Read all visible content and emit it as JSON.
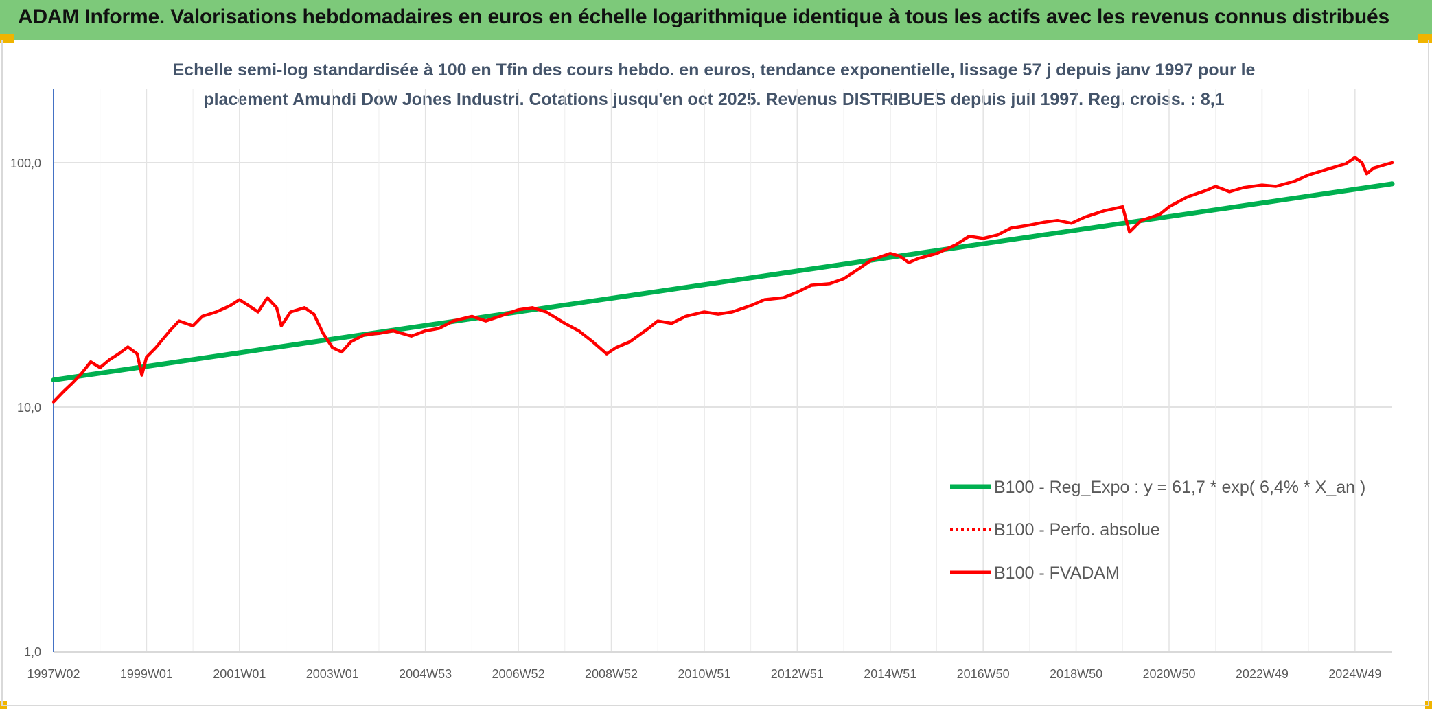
{
  "header": {
    "title": "ADAM Informe. Valorisations hebdomadaires en euros en échelle logarithmique identique à tous les actifs avec les revenus connus distribués"
  },
  "colors": {
    "banner": "#7dc97a",
    "regression": "#00b050",
    "fvadam": "#ff0000",
    "perfo": "#ff0000",
    "corner": "#f0b400"
  },
  "chart_data": {
    "type": "line",
    "title_line1": "Echelle semi-log standardisée à 100 en Tfin des cours hebdo. en euros, tendance exponentielle, lissage 57 j depuis janv 1997 pour le",
    "title_line2": "placement Amundi Dow Jones Industri. Cotations jusqu'en oct 2025. Revenus DISTRIBUES depuis juil 1997. Reg. croiss. : 8,1",
    "y_scale": "log",
    "ylim": [
      1,
      200
    ],
    "xlim": [
      1997.0,
      2025.8
    ],
    "y_ticks": [
      {
        "value": 100,
        "label": "100,0"
      },
      {
        "value": 10,
        "label": "10,0"
      },
      {
        "value": 1,
        "label": "1,0"
      }
    ],
    "x_ticks": [
      {
        "value": 1997.0,
        "label": "1997W02"
      },
      {
        "value": 1999.0,
        "label": "1999W01"
      },
      {
        "value": 2001.0,
        "label": "2001W01"
      },
      {
        "value": 2003.0,
        "label": "2003W01"
      },
      {
        "value": 2005.0,
        "label": "2004W53"
      },
      {
        "value": 2007.0,
        "label": "2006W52"
      },
      {
        "value": 2009.0,
        "label": "2008W52"
      },
      {
        "value": 2011.0,
        "label": "2010W51"
      },
      {
        "value": 2013.0,
        "label": "2012W51"
      },
      {
        "value": 2015.0,
        "label": "2014W51"
      },
      {
        "value": 2017.0,
        "label": "2016W50"
      },
      {
        "value": 2019.0,
        "label": "2018W50"
      },
      {
        "value": 2021.0,
        "label": "2020W50"
      },
      {
        "value": 2023.0,
        "label": "2022W49"
      },
      {
        "value": 2025.0,
        "label": "2024W49"
      }
    ],
    "grid": true,
    "legend_position": "right",
    "series": [
      {
        "name": "B100 - Reg_Expo : y = 61,7 * exp( 6,4% *  X_an )",
        "style": "solid-thick",
        "color": "#00b050",
        "points": [
          [
            1997.0,
            12.9
          ],
          [
            2025.8,
            81.9
          ]
        ]
      },
      {
        "name": "B100 - Perfo. absolue",
        "style": "dotted",
        "color": "#ff0000",
        "points": []
      },
      {
        "name": "B100 - FVADAM",
        "style": "solid",
        "color": "#ff0000",
        "points": [
          [
            1997.0,
            10.5
          ],
          [
            1997.2,
            11.5
          ],
          [
            1997.4,
            12.5
          ],
          [
            1997.6,
            13.7
          ],
          [
            1997.8,
            15.3
          ],
          [
            1998.0,
            14.5
          ],
          [
            1998.2,
            15.6
          ],
          [
            1998.4,
            16.5
          ],
          [
            1998.6,
            17.6
          ],
          [
            1998.8,
            16.5
          ],
          [
            1998.9,
            13.5
          ],
          [
            1999.0,
            16.0
          ],
          [
            1999.2,
            17.5
          ],
          [
            1999.5,
            20.5
          ],
          [
            1999.7,
            22.5
          ],
          [
            2000.0,
            21.5
          ],
          [
            2000.2,
            23.5
          ],
          [
            2000.5,
            24.5
          ],
          [
            2000.8,
            26.0
          ],
          [
            2001.0,
            27.5
          ],
          [
            2001.2,
            26.0
          ],
          [
            2001.4,
            24.5
          ],
          [
            2001.6,
            28.0
          ],
          [
            2001.8,
            25.5
          ],
          [
            2001.9,
            21.5
          ],
          [
            2002.1,
            24.5
          ],
          [
            2002.4,
            25.5
          ],
          [
            2002.6,
            24.0
          ],
          [
            2002.8,
            20.0
          ],
          [
            2003.0,
            17.5
          ],
          [
            2003.2,
            16.8
          ],
          [
            2003.4,
            18.5
          ],
          [
            2003.7,
            19.8
          ],
          [
            2004.0,
            20.0
          ],
          [
            2004.3,
            20.5
          ],
          [
            2004.7,
            19.5
          ],
          [
            2005.0,
            20.5
          ],
          [
            2005.3,
            21.0
          ],
          [
            2005.6,
            22.5
          ],
          [
            2006.0,
            23.5
          ],
          [
            2006.3,
            22.5
          ],
          [
            2006.6,
            23.5
          ],
          [
            2007.0,
            25.0
          ],
          [
            2007.3,
            25.5
          ],
          [
            2007.6,
            24.5
          ],
          [
            2008.0,
            22.0
          ],
          [
            2008.3,
            20.5
          ],
          [
            2008.6,
            18.5
          ],
          [
            2008.9,
            16.5
          ],
          [
            2009.1,
            17.5
          ],
          [
            2009.4,
            18.5
          ],
          [
            2009.8,
            21.0
          ],
          [
            2010.0,
            22.5
          ],
          [
            2010.3,
            22.0
          ],
          [
            2010.6,
            23.5
          ],
          [
            2011.0,
            24.5
          ],
          [
            2011.3,
            24.0
          ],
          [
            2011.6,
            24.5
          ],
          [
            2012.0,
            26.0
          ],
          [
            2012.3,
            27.5
          ],
          [
            2012.7,
            28.0
          ],
          [
            2013.0,
            29.5
          ],
          [
            2013.3,
            31.5
          ],
          [
            2013.7,
            32.0
          ],
          [
            2014.0,
            33.5
          ],
          [
            2014.3,
            36.5
          ],
          [
            2014.6,
            40.0
          ],
          [
            2015.0,
            42.5
          ],
          [
            2015.2,
            41.5
          ],
          [
            2015.4,
            39.0
          ],
          [
            2015.6,
            40.5
          ],
          [
            2016.0,
            42.5
          ],
          [
            2016.4,
            46.0
          ],
          [
            2016.7,
            50.0
          ],
          [
            2017.0,
            49.0
          ],
          [
            2017.3,
            50.5
          ],
          [
            2017.6,
            54.0
          ],
          [
            2018.0,
            55.5
          ],
          [
            2018.3,
            57.0
          ],
          [
            2018.6,
            58.0
          ],
          [
            2018.9,
            56.5
          ],
          [
            2019.2,
            60.0
          ],
          [
            2019.6,
            63.5
          ],
          [
            2020.0,
            66.0
          ],
          [
            2020.15,
            52.0
          ],
          [
            2020.4,
            58.0
          ],
          [
            2020.8,
            61.5
          ],
          [
            2021.0,
            66.0
          ],
          [
            2021.4,
            72.5
          ],
          [
            2021.8,
            77.0
          ],
          [
            2022.0,
            80.0
          ],
          [
            2022.3,
            76.0
          ],
          [
            2022.6,
            79.0
          ],
          [
            2023.0,
            81.0
          ],
          [
            2023.3,
            80.0
          ],
          [
            2023.7,
            84.0
          ],
          [
            2024.0,
            89.0
          ],
          [
            2024.4,
            94.0
          ],
          [
            2024.8,
            99.0
          ],
          [
            2025.0,
            105.0
          ],
          [
            2025.15,
            100.0
          ],
          [
            2025.25,
            90.0
          ],
          [
            2025.4,
            95.0
          ],
          [
            2025.6,
            97.5
          ],
          [
            2025.8,
            100.0
          ]
        ]
      }
    ],
    "legend": [
      {
        "label": "B100 - Reg_Expo : y = 61,7 * exp( 6,4% *  X_an )",
        "style": "solid-thick",
        "color": "#00b050"
      },
      {
        "label": "B100 - Perfo. absolue",
        "style": "dotted",
        "color": "#ff0000"
      },
      {
        "label": "B100 - FVADAM",
        "style": "solid",
        "color": "#ff0000"
      }
    ]
  }
}
